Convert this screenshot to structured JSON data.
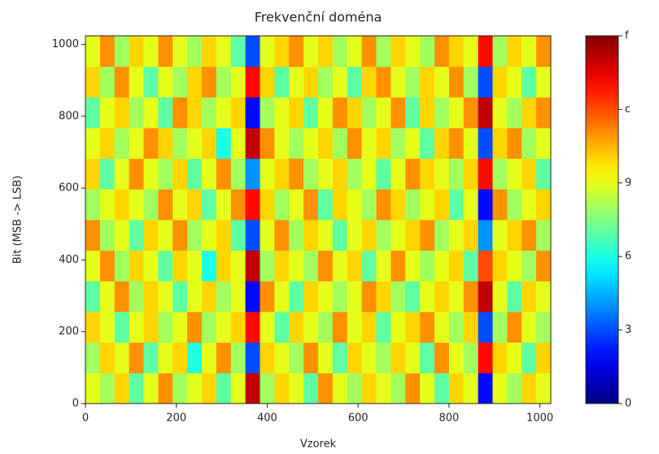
{
  "chart_data": {
    "type": "heatmap",
    "title": "Frekvenční doména",
    "xlabel": "Vzorek",
    "ylabel": "Bit (MSB -> LSB)",
    "colormap": "jet",
    "xlim": [
      0,
      1024
    ],
    "ylim": [
      0,
      1024
    ],
    "xticks": [
      0,
      200,
      400,
      600,
      800,
      1000
    ],
    "yticks": [
      0,
      200,
      400,
      600,
      800,
      1000
    ],
    "clim": [
      0,
      15
    ],
    "cticks": [
      {
        "value": 0,
        "label": "0"
      },
      {
        "value": 3,
        "label": "3"
      },
      {
        "value": 6,
        "label": "6"
      },
      {
        "value": 9,
        "label": "9"
      },
      {
        "value": 12,
        "label": "c"
      },
      {
        "value": 15,
        "label": "f"
      }
    ],
    "z": [
      [
        9,
        8,
        10,
        7,
        9,
        11,
        8,
        9,
        10,
        7,
        9,
        14,
        8,
        10,
        9,
        7,
        11,
        9,
        8,
        10,
        9,
        8,
        11,
        9,
        7,
        10,
        9,
        2,
        9,
        8,
        10,
        9
      ],
      [
        8,
        10,
        9,
        11,
        7,
        9,
        10,
        6,
        9,
        11,
        8,
        3,
        10,
        9,
        8,
        11,
        9,
        7,
        10,
        9,
        8,
        10,
        9,
        7,
        11,
        9,
        8,
        13,
        10,
        9,
        7,
        10
      ],
      [
        10,
        9,
        7,
        9,
        10,
        8,
        9,
        11,
        8,
        9,
        10,
        13,
        9,
        7,
        10,
        9,
        8,
        11,
        9,
        10,
        7,
        9,
        10,
        11,
        9,
        8,
        10,
        3,
        8,
        11,
        9,
        8
      ],
      [
        7,
        9,
        11,
        8,
        10,
        9,
        7,
        9,
        10,
        8,
        9,
        2,
        11,
        9,
        7,
        10,
        9,
        8,
        9,
        11,
        10,
        8,
        7,
        9,
        10,
        9,
        11,
        14,
        9,
        7,
        10,
        9
      ],
      [
        9,
        11,
        8,
        10,
        9,
        7,
        10,
        9,
        6,
        10,
        9,
        14,
        8,
        10,
        9,
        8,
        11,
        9,
        10,
        7,
        9,
        11,
        9,
        8,
        9,
        10,
        7,
        12,
        10,
        9,
        8,
        11
      ],
      [
        11,
        8,
        9,
        7,
        10,
        9,
        11,
        8,
        9,
        10,
        7,
        3,
        9,
        11,
        8,
        10,
        9,
        7,
        9,
        10,
        8,
        9,
        10,
        11,
        8,
        9,
        10,
        4,
        9,
        10,
        11,
        8
      ],
      [
        8,
        9,
        10,
        9,
        8,
        11,
        9,
        10,
        7,
        9,
        11,
        13,
        10,
        8,
        9,
        11,
        7,
        10,
        9,
        8,
        11,
        10,
        8,
        9,
        10,
        7,
        9,
        2,
        11,
        8,
        9,
        10
      ],
      [
        10,
        7,
        9,
        11,
        9,
        8,
        10,
        7,
        9,
        11,
        8,
        4,
        9,
        10,
        11,
        8,
        9,
        10,
        8,
        9,
        7,
        9,
        11,
        10,
        9,
        8,
        10,
        13,
        8,
        9,
        10,
        7
      ],
      [
        9,
        10,
        8,
        9,
        11,
        10,
        8,
        9,
        10,
        6,
        9,
        14,
        11,
        9,
        8,
        9,
        10,
        8,
        11,
        9,
        10,
        8,
        9,
        7,
        10,
        11,
        9,
        3,
        10,
        11,
        8,
        9
      ],
      [
        7,
        9,
        10,
        8,
        9,
        7,
        11,
        10,
        8,
        9,
        10,
        2,
        8,
        9,
        10,
        7,
        9,
        11,
        10,
        8,
        9,
        11,
        7,
        10,
        8,
        9,
        11,
        14,
        9,
        8,
        10,
        11
      ],
      [
        10,
        8,
        11,
        9,
        7,
        9,
        8,
        10,
        11,
        8,
        9,
        13,
        10,
        7,
        9,
        10,
        8,
        9,
        7,
        10,
        11,
        9,
        8,
        10,
        9,
        11,
        8,
        3,
        10,
        9,
        7,
        9
      ],
      [
        9,
        11,
        8,
        10,
        9,
        11,
        9,
        8,
        10,
        9,
        7,
        3,
        9,
        10,
        11,
        9,
        10,
        8,
        9,
        11,
        8,
        10,
        9,
        8,
        11,
        10,
        9,
        13,
        8,
        10,
        9,
        11
      ]
    ]
  }
}
